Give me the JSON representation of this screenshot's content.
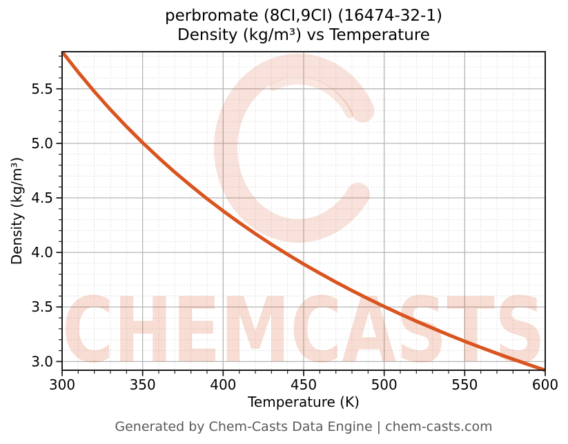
{
  "figure": {
    "footer": "Generated by Chem-Casts Data Engine | chem-casts.com",
    "watermark_text": "CHEMCASTS",
    "background_color": "#ffffff"
  },
  "chart_data": {
    "type": "line",
    "title": "perbromate (8CI,9CI) (16474-32-1)",
    "subtitle": "Density (kg/m³) vs Temperature",
    "xlabel": "Temperature (K)",
    "ylabel": "Density (kg/m³)",
    "xlim": [
      300,
      600
    ],
    "ylim": [
      2.92,
      5.84
    ],
    "x_ticks": [
      300,
      350,
      400,
      450,
      500,
      550,
      600
    ],
    "y_ticks": [
      3.0,
      3.5,
      4.0,
      4.5,
      5.0,
      5.5
    ],
    "x_minor_step": 10,
    "y_minor_step": 0.1,
    "grid": true,
    "legend": "none",
    "line_color": "#d9541f",
    "major_grid_color": "#b5b5b5",
    "minor_grid_color": "#d9d9d9",
    "spine_color": "#1a1a1a",
    "watermark_color_rgb": "214,77,29",
    "series": [
      {
        "name": "Density",
        "x": [
          300,
          310,
          320,
          330,
          340,
          350,
          360,
          370,
          380,
          390,
          400,
          410,
          420,
          430,
          440,
          450,
          460,
          470,
          480,
          490,
          500,
          510,
          520,
          530,
          540,
          550,
          560,
          570,
          580,
          590,
          600
        ],
        "y": [
          5.84,
          5.652,
          5.475,
          5.309,
          5.153,
          5.006,
          4.867,
          4.735,
          4.611,
          4.492,
          4.38,
          4.273,
          4.171,
          4.074,
          3.982,
          3.893,
          3.809,
          3.728,
          3.65,
          3.576,
          3.504,
          3.435,
          3.369,
          3.306,
          3.244,
          3.185,
          3.129,
          3.074,
          3.021,
          2.97,
          2.92
        ]
      }
    ]
  }
}
